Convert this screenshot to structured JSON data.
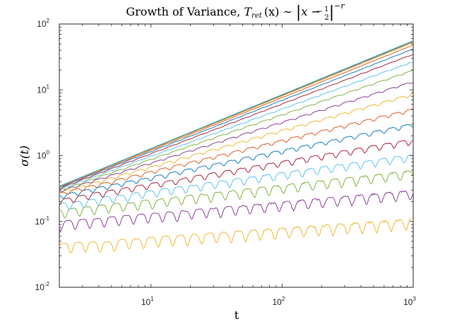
{
  "chart_data": {
    "type": "line",
    "title": "Growth of Variance, T_ret (x) ~ |x − ½|^−r",
    "title_parts": {
      "prefix": "Growth of Variance, ",
      "T": "T",
      "sub": "ret",
      "arg": "(x) ∼ ",
      "bar_open": "|",
      "x_minus": "x − ",
      "frac_num": "1",
      "frac_den": "2",
      "bar_close": "|",
      "exponent": "−r"
    },
    "xlabel": "t",
    "ylabel": "σ(t)",
    "xscale": "log",
    "yscale": "log",
    "xlim": [
      2,
      1000
    ],
    "ylim": [
      0.01,
      100
    ],
    "x_ticks": [
      {
        "base": "10",
        "exp": "1",
        "value": 10
      },
      {
        "base": "10",
        "exp": "2",
        "value": 100
      },
      {
        "base": "10",
        "exp": "3",
        "value": 1000
      }
    ],
    "y_ticks": [
      {
        "base": "10",
        "exp": "-2",
        "value": 0.01
      },
      {
        "base": "10",
        "exp": "-1",
        "value": 0.1
      },
      {
        "base": "10",
        "exp": "0",
        "value": 1
      },
      {
        "base": "10",
        "exp": "1",
        "value": 10
      },
      {
        "base": "10",
        "exp": "2",
        "value": 100
      }
    ],
    "grid": false,
    "legend": "none",
    "series": [
      {
        "color": "#EDB120",
        "start": 0.046,
        "end": 0.11,
        "ripple": 0.13
      },
      {
        "color": "#7E2F8E",
        "start": 0.1,
        "end": 0.3,
        "ripple": 0.12
      },
      {
        "color": "#77AC30",
        "start": 0.15,
        "end": 0.6,
        "ripple": 0.11
      },
      {
        "color": "#4DBEEE",
        "start": 0.19,
        "end": 1.05,
        "ripple": 0.09
      },
      {
        "color": "#A2142F",
        "start": 0.22,
        "end": 1.8,
        "ripple": 0.07
      },
      {
        "color": "#0072BD",
        "start": 0.25,
        "end": 3.1,
        "ripple": 0.05
      },
      {
        "color": "#D95319",
        "start": 0.27,
        "end": 5.2,
        "ripple": 0.04
      },
      {
        "color": "#EDB120",
        "start": 0.28,
        "end": 8.8,
        "ripple": 0.03
      },
      {
        "color": "#7E2F8E",
        "start": 0.29,
        "end": 13.5,
        "ripple": 0.02
      },
      {
        "color": "#77AC30",
        "start": 0.3,
        "end": 20.0,
        "ripple": 0.015
      },
      {
        "color": "#4DBEEE",
        "start": 0.31,
        "end": 27.0,
        "ripple": 0.01
      },
      {
        "color": "#A2142F",
        "start": 0.32,
        "end": 35.0,
        "ripple": 0.008
      },
      {
        "color": "#0072BD",
        "start": 0.33,
        "end": 42.0,
        "ripple": 0.005
      },
      {
        "color": "#D95319",
        "start": 0.335,
        "end": 48.0,
        "ripple": 0.003
      },
      {
        "color": "#EDB120",
        "start": 0.34,
        "end": 52.0,
        "ripple": 0.002
      },
      {
        "color": "#7E2F8E",
        "start": 0.342,
        "end": 54.0,
        "ripple": 0.001
      },
      {
        "color": "#77AC30",
        "start": 0.344,
        "end": 55.0,
        "ripple": 0.001
      },
      {
        "color": "#4DBEEE",
        "start": 0.345,
        "end": 56.0,
        "ripple": 0.0
      }
    ]
  }
}
